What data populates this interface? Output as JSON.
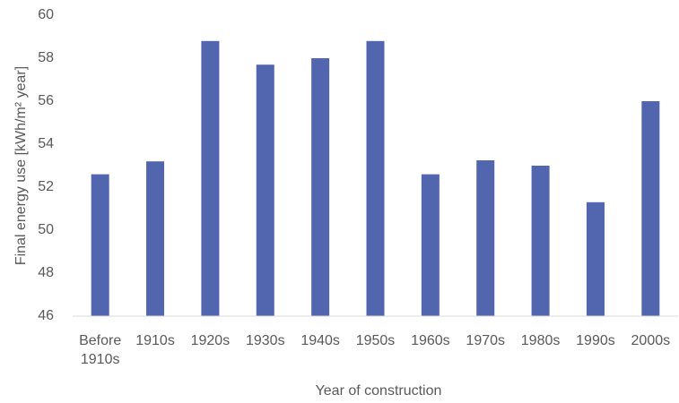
{
  "chart_data": {
    "type": "bar",
    "x_label": "Year of construction",
    "y_label": "Final energy use [kWh/m² year]",
    "categories": [
      "Before 1910s",
      "1910s",
      "1920s",
      "1930s",
      "1940s",
      "1950s",
      "1960s",
      "1970s",
      "1980s",
      "1990s",
      "2000s"
    ],
    "values": [
      52.6,
      53.2,
      58.8,
      57.7,
      58.0,
      58.8,
      52.6,
      53.25,
      53.0,
      51.3,
      56.0
    ],
    "color": "#5266b0",
    "ylim": [
      46,
      60
    ],
    "yticks": [
      46,
      48,
      50,
      52,
      54,
      56,
      58,
      60
    ],
    "grid": false
  }
}
